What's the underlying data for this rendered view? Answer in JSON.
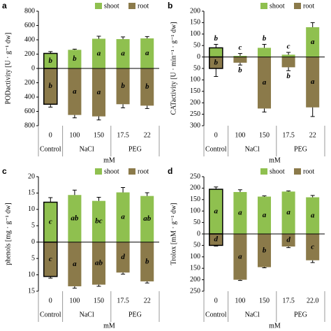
{
  "chart_data": [
    {
      "panel_label": "a",
      "type": "bar",
      "y_label": "PODactivity [U · g⁻¹ dw]",
      "x_label": "mM",
      "categories": [
        "0",
        "100",
        "150",
        "17.5",
        "22"
      ],
      "groups": [
        {
          "label": "Control",
          "span": 1
        },
        {
          "label": "NaCl",
          "span": 2
        },
        {
          "label": "PEG",
          "span": 2
        }
      ],
      "ylim": [
        -800,
        800
      ],
      "yticks": [
        {
          "value": -800,
          "label": "800"
        },
        {
          "value": -600,
          "label": "600"
        },
        {
          "value": -400,
          "label": "400"
        },
        {
          "value": -200,
          "label": "200"
        },
        0,
        200,
        400,
        600,
        800
      ],
      "series": [
        {
          "name": "shoot",
          "color": "#8fc04f",
          "values": [
            210,
            260,
            415,
            410,
            420
          ],
          "errors": [
            25,
            10,
            35,
            30,
            25
          ],
          "letters": [
            "b",
            "b",
            "a",
            "a",
            "a"
          ]
        },
        {
          "name": "root",
          "color": "#8b7a4a",
          "values": [
            -500,
            -650,
            -670,
            -500,
            -520
          ],
          "errors": [
            40,
            40,
            50,
            50,
            40
          ],
          "letters": [
            "b",
            "a",
            "a",
            "b",
            "b"
          ]
        }
      ]
    },
    {
      "panel_label": "b",
      "type": "bar",
      "y_label": "CATactivity [U · min⁻¹ · g⁻¹ dw]",
      "x_label": "mM",
      "categories": [
        "0",
        "100",
        "150",
        "17.5",
        "22"
      ],
      "groups": [
        {
          "label": "Control",
          "span": 1
        },
        {
          "label": "NaCl",
          "span": 2
        },
        {
          "label": "PEG",
          "span": 2
        }
      ],
      "ylim": [
        -300,
        200
      ],
      "yticks": [
        {
          "value": -300,
          "label": "300"
        },
        {
          "value": -250,
          "label": "250"
        },
        {
          "value": -200,
          "label": "200"
        },
        {
          "value": -150,
          "label": "150"
        },
        {
          "value": -100,
          "label": "100"
        },
        {
          "value": -50,
          "label": "50"
        },
        0,
        50,
        100,
        150,
        200
      ],
      "series": [
        {
          "name": "shoot",
          "color": "#8fc04f",
          "values": [
            40,
            5,
            40,
            10,
            130
          ],
          "errors": [
            15,
            10,
            15,
            10,
            20
          ],
          "letters": [
            "b",
            "c",
            "b",
            "c",
            "a"
          ]
        },
        {
          "name": "root",
          "color": "#8b7a4a",
          "values": [
            -50,
            -25,
            -225,
            -45,
            -220
          ],
          "errors": [
            35,
            10,
            15,
            15,
            40
          ],
          "letters": [
            "b",
            "b",
            "a",
            "b",
            "a"
          ]
        }
      ]
    },
    {
      "panel_label": "c",
      "type": "bar",
      "y_label": "phenols [mg · g⁻¹ dw]",
      "x_label": "mM",
      "categories": [
        "0",
        "100",
        "150",
        "17.5",
        "22"
      ],
      "groups": [
        {
          "label": "Control",
          "span": 1
        },
        {
          "label": "NaCl",
          "span": 2
        },
        {
          "label": "PEG",
          "span": 2
        }
      ],
      "ylim": [
        -15,
        20
      ],
      "yticks": [
        {
          "value": -15,
          "label": "15"
        },
        {
          "value": -10,
          "label": "10"
        },
        {
          "value": -5,
          "label": "5"
        },
        0,
        5,
        10,
        15,
        20
      ],
      "series": [
        {
          "name": "shoot",
          "color": "#8fc04f",
          "values": [
            12.2,
            14.4,
            12.6,
            15.2,
            14.1
          ],
          "errors": [
            1.4,
            1.5,
            1.1,
            1.5,
            1.0
          ],
          "letters": [
            "c",
            "ab",
            "bc",
            "a",
            "ab"
          ]
        },
        {
          "name": "root",
          "color": "#8b7a4a",
          "values": [
            -10.5,
            -13.5,
            -13,
            -9.3,
            -12
          ],
          "errors": [
            0.5,
            0.6,
            0.5,
            0.5,
            0.5
          ],
          "letters": [
            "c",
            "a",
            "ab",
            "d",
            "b"
          ]
        }
      ]
    },
    {
      "panel_label": "d",
      "type": "bar",
      "y_label": "Trolox [mM · g⁻¹ dw]",
      "x_label": "mM",
      "categories": [
        "0",
        "100",
        "150",
        "17.5",
        "22.0"
      ],
      "groups": [
        {
          "label": "Control",
          "span": 1
        },
        {
          "label": "NaCl",
          "span": 2
        },
        {
          "label": "PEG",
          "span": 2
        }
      ],
      "ylim": [
        -250,
        250
      ],
      "yticks": [
        {
          "value": -250,
          "label": "250"
        },
        {
          "value": -200,
          "label": "200"
        },
        {
          "value": -150,
          "label": "150"
        },
        {
          "value": -100,
          "label": "100"
        },
        {
          "value": -50,
          "label": "50"
        },
        0,
        50,
        100,
        150,
        200,
        250
      ],
      "series": [
        {
          "name": "shoot",
          "color": "#8fc04f",
          "values": [
            195,
            183,
            163,
            185,
            160
          ],
          "errors": [
            10,
            10,
            3,
            3,
            8
          ],
          "letters": [
            "a",
            "a",
            "a",
            "a",
            "a"
          ]
        },
        {
          "name": "root",
          "color": "#8b7a4a",
          "values": [
            -50,
            -200,
            -145,
            -55,
            -115
          ],
          "errors": [
            3,
            3,
            3,
            5,
            10
          ],
          "letters": [
            "d",
            "a",
            "b",
            "d",
            "c"
          ]
        }
      ]
    }
  ]
}
